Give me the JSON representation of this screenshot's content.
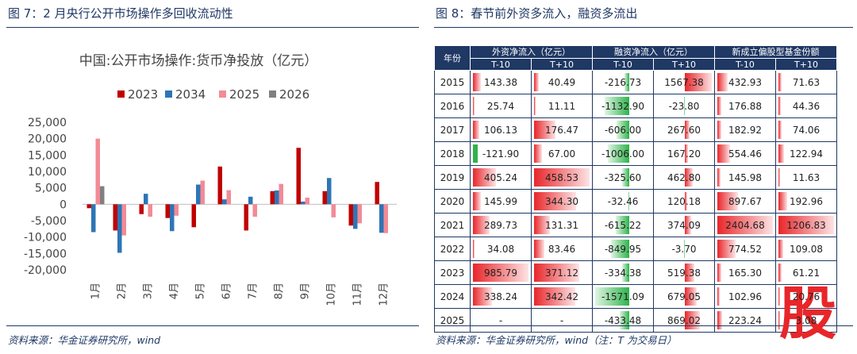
{
  "left_panel": {
    "title": "图 7：2 月央行公开市场操作多回收流动性",
    "source": "资料来源：华金证券研究所，wind"
  },
  "right_panel": {
    "title": "图 8：春节前外资多流入，融资多流出",
    "source": "资料来源：华金证券研究所，wind（注：T 为交易日）",
    "stamp": "股"
  },
  "colors": {
    "s2023": "#c00000",
    "s2034": "#2e75b6",
    "s2025": "#f28b96",
    "s2026": "#808080",
    "navy": "#1f3864",
    "pos": "#e8262a",
    "neg": "#2eb34a"
  },
  "table": {
    "year_header": "年份",
    "groups": [
      "外资净流入（亿元）",
      "融资净流入（亿元）",
      "新成立偏股型基金份额"
    ],
    "subheaders": [
      "T-10",
      "T+10",
      "T-10",
      "T+10",
      "T-10",
      "T+10"
    ],
    "rows": [
      {
        "year": "2015",
        "cells": [
          "143.38",
          "40.49",
          "-216.73",
          "1567.38",
          "432.93",
          "71.63"
        ]
      },
      {
        "year": "2016",
        "cells": [
          "25.74",
          "11.11",
          "-1132.90",
          "-23.80",
          "176.88",
          "44.36"
        ]
      },
      {
        "year": "2017",
        "cells": [
          "106.13",
          "176.47",
          "-606.00",
          "267.60",
          "182.92",
          "74.06"
        ]
      },
      {
        "year": "2018",
        "cells": [
          "-121.90",
          "67.00",
          "-1006.00",
          "167.20",
          "554.46",
          "122.94"
        ]
      },
      {
        "year": "2019",
        "cells": [
          "405.24",
          "458.53",
          "-325.60",
          "462.80",
          "145.98",
          "11.63"
        ]
      },
      {
        "year": "2020",
        "cells": [
          "145.99",
          "344.30",
          "-32.46",
          "120.18",
          "897.67",
          "192.96"
        ]
      },
      {
        "year": "2021",
        "cells": [
          "289.73",
          "131.31",
          "-615.22",
          "374.09",
          "2404.68",
          "1206.83"
        ]
      },
      {
        "year": "2022",
        "cells": [
          "34.08",
          "83.46",
          "-849.95",
          "-3.70",
          "774.52",
          "109.08"
        ]
      },
      {
        "year": "2023",
        "cells": [
          "985.79",
          "371.12",
          "-334.38",
          "519.38",
          "165.30",
          "61.21"
        ]
      },
      {
        "year": "2024",
        "cells": [
          "338.24",
          "342.42",
          "-1571.09",
          "679.05",
          "102.96",
          "20.76"
        ]
      },
      {
        "year": "2025",
        "cells": [
          "-",
          "-",
          "-433.48",
          "869.02",
          "223.24",
          "3.08"
        ]
      }
    ]
  },
  "chart_data": {
    "type": "bar",
    "title": "中国:公开市场操作:货币净投放（亿元）",
    "categories": [
      "1月",
      "2月",
      "3月",
      "4月",
      "5月",
      "6月",
      "7月",
      "8月",
      "9月",
      "10月",
      "11月",
      "12月"
    ],
    "series": [
      {
        "name": "2023",
        "values": [
          -1200,
          -8000,
          -3000,
          -4200,
          -7000,
          11500,
          -8000,
          4000,
          17200,
          4000,
          -6500,
          6800
        ]
      },
      {
        "name": "2034",
        "values": [
          -8500,
          -14800,
          3200,
          -8200,
          6000,
          1500,
          2300,
          4200,
          800,
          8000,
          -7500,
          -8700
        ]
      },
      {
        "name": "2025",
        "values": [
          20000,
          -9500,
          -3800,
          -3500,
          7200,
          4300,
          -3800,
          6200,
          2000,
          -4000,
          -5800,
          -8800
        ]
      },
      {
        "name": "2026",
        "values": [
          5500,
          null,
          null,
          null,
          null,
          null,
          null,
          null,
          null,
          null,
          null,
          null
        ]
      }
    ],
    "yticks": [
      "25,000",
      "20,000",
      "15,000",
      "10,000",
      "5,000",
      "0",
      "-5,000",
      "-10,000",
      "-15,000",
      "-20,000"
    ],
    "ylim": [
      -20000,
      25000
    ],
    "legend": "top",
    "grid": false
  }
}
